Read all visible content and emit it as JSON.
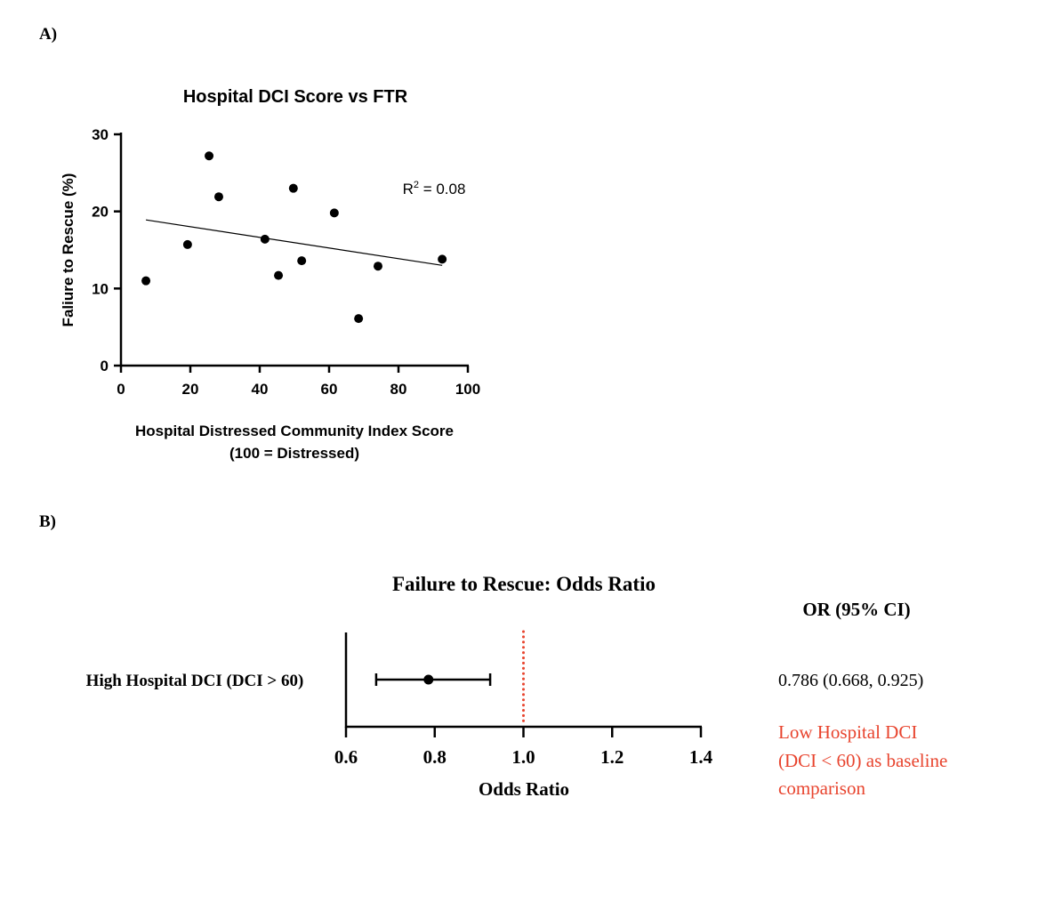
{
  "chart_data": [
    {
      "panel_label": "A)",
      "type": "scatter",
      "title": "Hospital DCI Score vs FTR",
      "xlabel": "Hospital Distressed Community Index Score",
      "xlabel_line2": "(100 = Distressed)",
      "ylabel": "Faliure to Rescue (%)",
      "xlim": [
        0,
        100
      ],
      "ylim": [
        0,
        30
      ],
      "xticks": [
        "0",
        "20",
        "40",
        "60",
        "80",
        "100"
      ],
      "yticks": [
        "0",
        "10",
        "20",
        "30"
      ],
      "points": [
        {
          "x": 7.2,
          "y": 11.0
        },
        {
          "x": 19.2,
          "y": 15.7
        },
        {
          "x": 25.4,
          "y": 27.2
        },
        {
          "x": 28.2,
          "y": 21.9
        },
        {
          "x": 41.5,
          "y": 16.4
        },
        {
          "x": 45.4,
          "y": 11.7
        },
        {
          "x": 49.7,
          "y": 23.0
        },
        {
          "x": 52.1,
          "y": 13.6
        },
        {
          "x": 61.5,
          "y": 19.8
        },
        {
          "x": 68.5,
          "y": 6.1
        },
        {
          "x": 74.1,
          "y": 12.9
        },
        {
          "x": 92.6,
          "y": 13.8
        }
      ],
      "regression_line": {
        "x": [
          7.2,
          92.6
        ],
        "y": [
          18.9,
          13.0
        ]
      },
      "annotation": {
        "prefix": "R",
        "sup": "2",
        "suffix": " = 0.08"
      },
      "grid": false
    },
    {
      "panel_label": "B)",
      "type": "forest",
      "title": "Failure to Rescue: Odds Ratio",
      "xlabel": "Odds Ratio",
      "xlim": [
        0.6,
        1.4
      ],
      "xticks": [
        "0.6",
        "0.8",
        "1.0",
        "1.2",
        "1.4"
      ],
      "reference_line": 1.0,
      "rows": [
        {
          "label": "High Hospital DCI (DCI > 60)",
          "or": 0.786,
          "lower": 0.668,
          "upper": 0.925,
          "text": "0.786 (0.668, 0.925)"
        }
      ],
      "column_header": "OR (95% CI)",
      "note": [
        "Low Hospital DCI",
        "(DCI < 60) as baseline",
        "comparison"
      ],
      "colors": {
        "reference": "#e8442e",
        "note": "#e8442e",
        "marks": "#000000"
      }
    }
  ]
}
